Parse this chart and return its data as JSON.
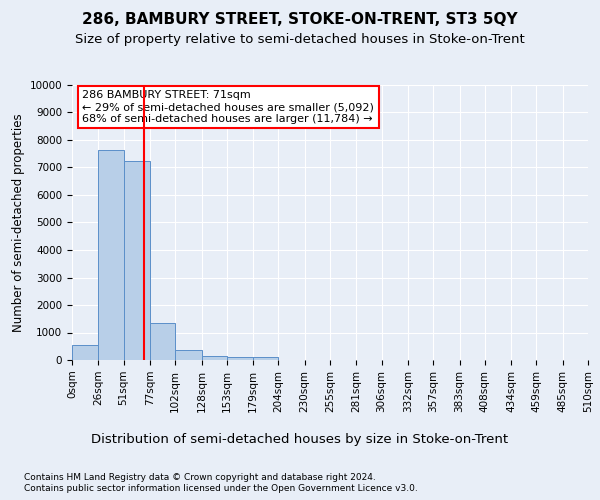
{
  "title1": "286, BAMBURY STREET, STOKE-ON-TRENT, ST3 5QY",
  "title2": "Size of property relative to semi-detached houses in Stoke-on-Trent",
  "xlabel": "Distribution of semi-detached houses by size in Stoke-on-Trent",
  "ylabel": "Number of semi-detached properties",
  "footnote1": "Contains HM Land Registry data © Crown copyright and database right 2024.",
  "footnote2": "Contains public sector information licensed under the Open Government Licence v3.0.",
  "bar_edges": [
    0,
    26,
    51,
    77,
    102,
    128,
    153,
    179,
    204,
    230,
    255,
    281,
    306,
    332,
    357,
    383,
    408,
    434,
    459,
    485,
    510
  ],
  "bar_values": [
    550,
    7650,
    7250,
    1350,
    350,
    150,
    100,
    100,
    0,
    0,
    0,
    0,
    0,
    0,
    0,
    0,
    0,
    0,
    0,
    0
  ],
  "bar_color": "#b8cfe8",
  "bar_edge_color": "#5b8fc9",
  "property_size": 71,
  "property_line_color": "red",
  "annotation_text1": "286 BAMBURY STREET: 71sqm",
  "annotation_text2": "← 29% of semi-detached houses are smaller (5,092)",
  "annotation_text3": "68% of semi-detached houses are larger (11,784) →",
  "annotation_box_color": "white",
  "annotation_box_edge_color": "red",
  "ylim": [
    0,
    10000
  ],
  "yticks": [
    0,
    1000,
    2000,
    3000,
    4000,
    5000,
    6000,
    7000,
    8000,
    9000,
    10000
  ],
  "bg_color": "#e8eef7",
  "plot_bg_color": "#e8eef7",
  "grid_color": "white",
  "title1_fontsize": 11,
  "title2_fontsize": 9.5,
  "xlabel_fontsize": 9.5,
  "ylabel_fontsize": 8.5,
  "tick_fontsize": 7.5,
  "annotation_fontsize": 8,
  "footnote_fontsize": 6.5
}
